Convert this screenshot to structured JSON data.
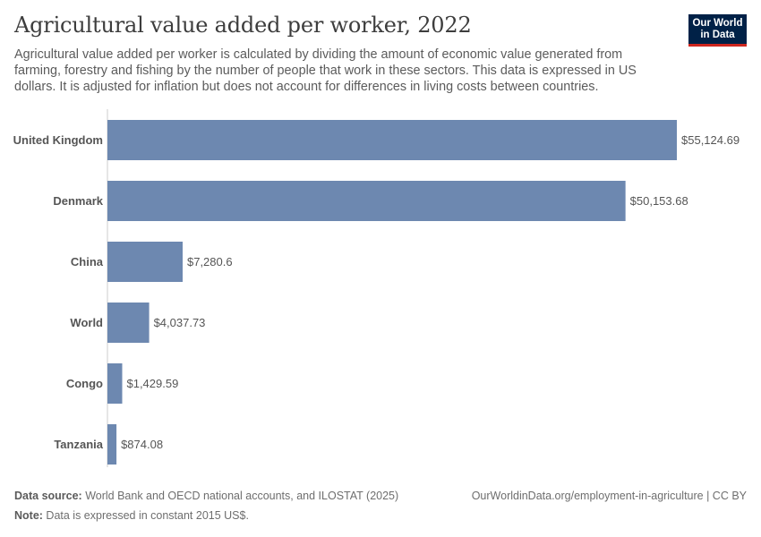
{
  "header": {
    "title": "Agricultural value added per worker, 2022",
    "subtitle": "Agricultural value added per worker is calculated by dividing the amount of economic value generated from farming, forestry and fishing by the number of people that work in these sectors. This data is expressed in US dollars. It is adjusted for inflation but does not account for differences in living costs between countries."
  },
  "logo": {
    "line1": "Our World",
    "line2": "in Data"
  },
  "footer": {
    "source_label": "Data source:",
    "source_text": " World Bank and OECD national accounts, and ILOSTAT (2025)",
    "url": "OurWorldinData.org/employment-in-agriculture | CC BY",
    "note_label": "Note:",
    "note_text": " Data is expressed in constant 2015 US$."
  },
  "colors": {
    "bar": "#6d88b0",
    "axis": "#cccccc"
  },
  "chart_data": {
    "type": "bar",
    "orientation": "horizontal",
    "categories": [
      "United Kingdom",
      "Denmark",
      "China",
      "World",
      "Congo",
      "Tanzania"
    ],
    "values": [
      55124.69,
      50153.68,
      7280.6,
      4037.73,
      1429.59,
      874.08
    ],
    "value_labels": [
      "$55,124.69",
      "$50,153.68",
      "$7,280.6",
      "$4,037.73",
      "$1,429.59",
      "$874.08"
    ],
    "title": "Agricultural value added per worker, 2022",
    "xlabel": "",
    "ylabel": "",
    "xlim": [
      0,
      55124.69
    ]
  }
}
